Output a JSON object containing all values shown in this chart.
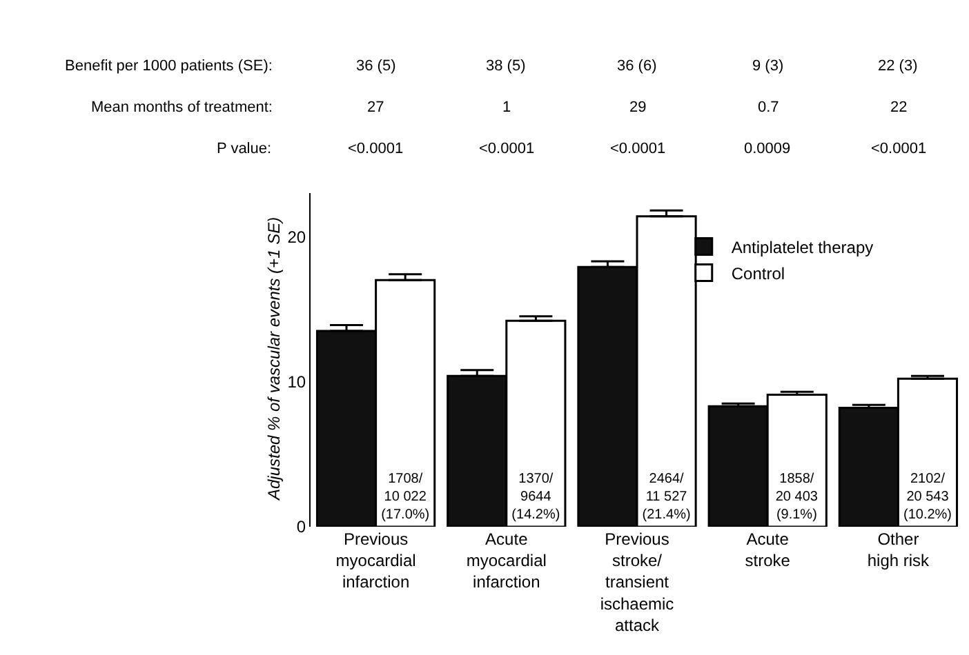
{
  "chart_data": {
    "type": "bar",
    "categories": [
      "Previous\nmyocardial\ninfarction",
      "Acute\nmyocardial\ninfarction",
      "Previous\nstroke/\ntransient\nischaemic\nattack",
      "Acute\nstroke",
      "Other\nhigh risk"
    ],
    "series": [
      {
        "name": "Antiplatelet therapy",
        "color": "#111111",
        "values": [
          13.5,
          10.4,
          17.9,
          8.3,
          8.2
        ],
        "errors": [
          [
            13.5,
            13.9
          ],
          [
            10.4,
            10.8
          ],
          [
            17.9,
            18.3
          ],
          [
            8.3,
            8.5
          ],
          [
            8.2,
            8.4
          ]
        ]
      },
      {
        "name": "Control",
        "color": "#ffffff",
        "values": [
          17.0,
          14.2,
          21.4,
          9.1,
          10.2
        ],
        "errors": [
          [
            17.0,
            17.4
          ],
          [
            14.2,
            14.5
          ],
          [
            21.4,
            21.8
          ],
          [
            9.1,
            9.3
          ],
          [
            10.2,
            10.4
          ]
        ],
        "value_labels": [
          "1708/\n10 022\n(17.0%)",
          "1370/\n9644\n(14.2%)",
          "2464/\n11 527\n(21.4%)",
          "1858/\n20 403\n(9.1%)",
          "2102/\n20 543\n(10.2%)"
        ]
      }
    ],
    "ylabel": "Adjusted % of vascular events (+1 SE)",
    "ylim": [
      0,
      23
    ],
    "yticks": [
      0,
      10,
      20
    ],
    "grid": false,
    "legend": "top right",
    "annotations": [
      "Benefit per 1000 patients (SE):",
      "36 (5)",
      "38 (5)",
      "36 (6)",
      "9 (3)",
      "22 (3)",
      "Mean months of treatment:",
      "27",
      "1",
      "29",
      "0.7",
      "22",
      "P value:",
      "<0.0001",
      "<0.0001",
      "<0.0001",
      "0.0009",
      "<0.0001"
    ]
  }
}
